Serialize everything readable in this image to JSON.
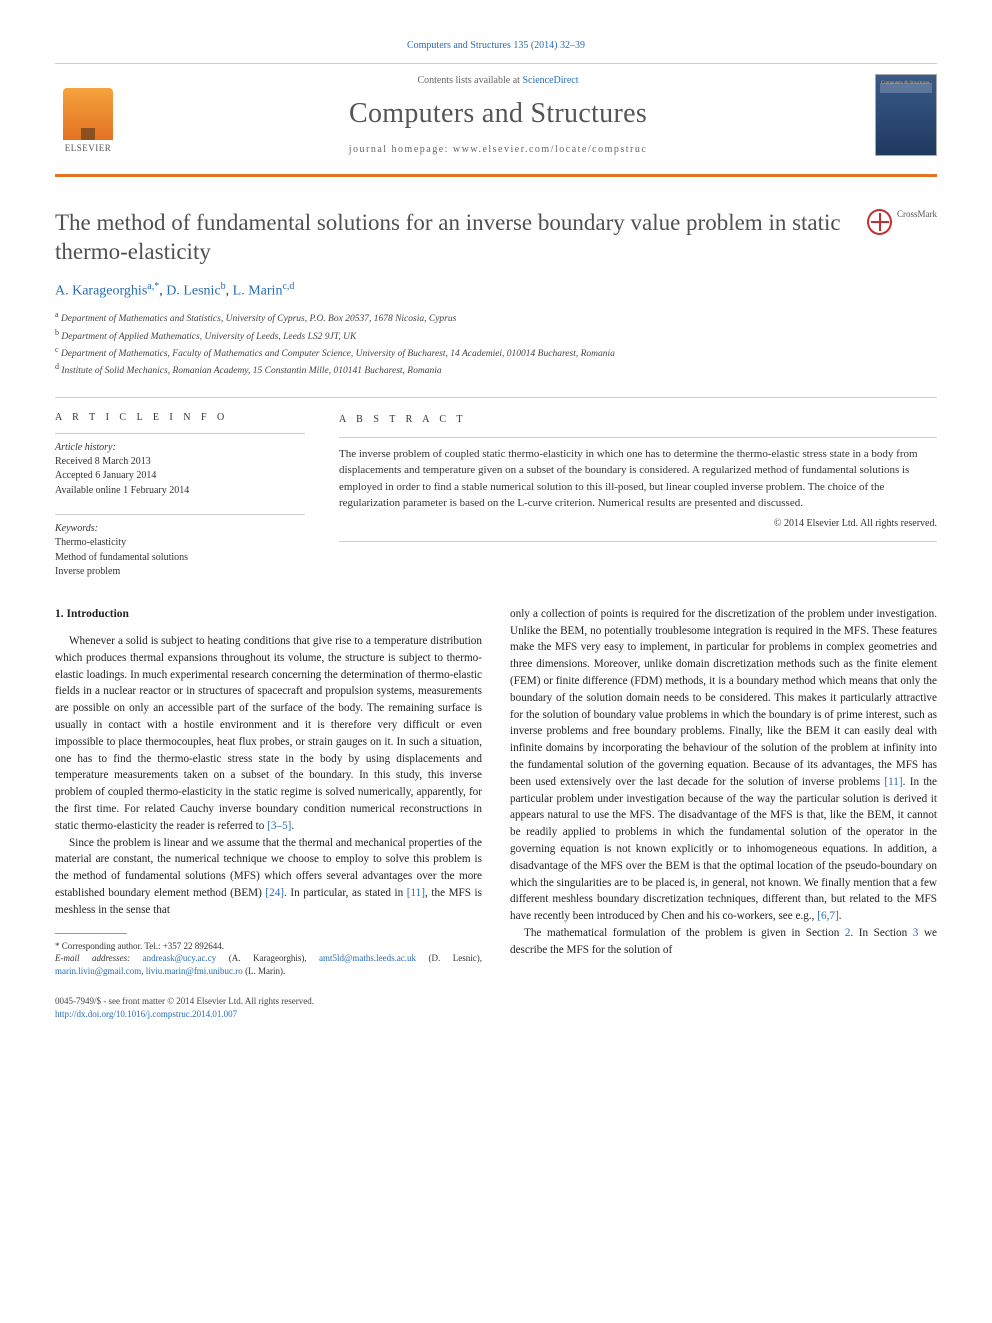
{
  "header": {
    "citation": "Computers and Structures 135 (2014) 32–39",
    "contents_prefix": "Contents lists available at ",
    "contents_link": "ScienceDirect",
    "journal_name": "Computers and Structures",
    "homepage_label": "journal homepage: ",
    "homepage_url": "www.elsevier.com/locate/compstruc",
    "publisher_logo_text": "ELSEVIER",
    "cover_label": "Computers & Structures"
  },
  "crossmark": {
    "label": "CrossMark"
  },
  "article": {
    "title": "The method of fundamental solutions for an inverse boundary value problem in static thermo-elasticity",
    "authors_html": {
      "a1": "A. Karageorghis",
      "a1_sup": "a,*",
      "a2": "D. Lesnic",
      "a2_sup": "b",
      "a3": "L. Marin",
      "a3_sup": "c,d"
    },
    "affiliations": [
      {
        "sup": "a",
        "text": "Department of Mathematics and Statistics, University of Cyprus, P.O. Box 20537, 1678 Nicosia, Cyprus"
      },
      {
        "sup": "b",
        "text": "Department of Applied Mathematics, University of Leeds, Leeds LS2 9JT, UK"
      },
      {
        "sup": "c",
        "text": "Department of Mathematics, Faculty of Mathematics and Computer Science, University of Bucharest, 14 Academiei, 010014 Bucharest, Romania"
      },
      {
        "sup": "d",
        "text": "Institute of Solid Mechanics, Romanian Academy, 15 Constantin Mille, 010141 Bucharest, Romania"
      }
    ]
  },
  "article_info": {
    "heading": "A R T I C L E   I N F O",
    "history_label": "Article history:",
    "received": "Received 8 March 2013",
    "accepted": "Accepted 6 January 2014",
    "online": "Available online 1 February 2014",
    "keywords_label": "Keywords:",
    "keywords": [
      "Thermo-elasticity",
      "Method of fundamental solutions",
      "Inverse problem"
    ]
  },
  "abstract": {
    "heading": "A B S T R A C T",
    "text": "The inverse problem of coupled static thermo-elasticity in which one has to determine the thermo-elastic stress state in a body from displacements and temperature given on a subset of the boundary is considered. A regularized method of fundamental solutions is employed in order to find a stable numerical solution to this ill-posed, but linear coupled inverse problem. The choice of the regularization parameter is based on the L-curve criterion. Numerical results are presented and discussed.",
    "copyright": "© 2014 Elsevier Ltd. All rights reserved."
  },
  "body": {
    "section_heading": "1. Introduction",
    "col1_p1": "Whenever a solid is subject to heating conditions that give rise to a temperature distribution which produces thermal expansions throughout its volume, the structure is subject to thermo-elastic loadings. In much experimental research concerning the determination of thermo-elastic fields in a nuclear reactor or in structures of spacecraft and propulsion systems, measurements are possible on only an accessible part of the surface of the body. The remaining surface is usually in contact with a hostile environment and it is therefore very difficult or even impossible to place thermocouples, heat flux probes, or strain gauges on it. In such a situation, one has to find the thermo-elastic stress state in the body by using displacements and temperature measurements taken on a subset of the boundary. In this study, this inverse problem of coupled thermo-elasticity in the static regime is solved numerically, apparently, for the first time. For related Cauchy inverse boundary condition numerical reconstructions in static thermo-elasticity the reader is referred to ",
    "col1_p1_ref": "[3–5]",
    "col1_p1_tail": ".",
    "col1_p2a": "Since the problem is linear and we assume that the thermal and mechanical properties of the material are constant, the numerical technique we choose to employ to solve this problem is the method of fundamental solutions (MFS) which offers several advantages over the more established boundary element method (BEM) ",
    "col1_p2_ref1": "[24]",
    "col1_p2b": ". In particular, as stated in ",
    "col1_p2_ref2": "[11]",
    "col1_p2c": ", the MFS is meshless in the sense that",
    "col2_p1a": "only a collection of points is required for the discretization of the problem under investigation. Unlike the BEM, no potentially troublesome integration is required in the MFS. These features make the MFS very easy to implement, in particular for problems in complex geometries and three dimensions. Moreover, unlike domain discretization methods such as the finite element (FEM) or finite difference (FDM) methods, it is a boundary method which means that only the boundary of the solution domain needs to be considered. This makes it particularly attractive for the solution of boundary value problems in which the boundary is of prime interest, such as inverse problems and free boundary problems. Finally, like the BEM it can easily deal with infinite domains by incorporating the behaviour of the solution of the problem at infinity into the fundamental solution of the governing equation. Because of its advantages, the MFS has been used extensively over the last decade for the solution of inverse problems ",
    "col2_p1_ref1": "[11]",
    "col2_p1b": ". In the particular problem under investigation because of the way the particular solution is derived it appears natural to use the MFS. The disadvantage of the MFS is that, like the BEM, it cannot be readily applied to problems in which the fundamental solution of the operator in the governing equation is not known explicitly or to inhomogeneous equations. In addition, a disadvantage of the MFS over the BEM is that the optimal location of the pseudo-boundary on which the singularities are to be placed is, in general, not known. We finally mention that a few different meshless boundary discretization techniques, different than, but related to the MFS have recently been introduced by Chen and his co-workers, see e.g., ",
    "col2_p1_ref2": "[6,7]",
    "col2_p1c": ".",
    "col2_p2a": "The mathematical formulation of the problem is given in Section ",
    "col2_p2_ref1": "2",
    "col2_p2b": ". In Section ",
    "col2_p2_ref2": "3",
    "col2_p2c": " we describe the MFS for the solution of"
  },
  "footnotes": {
    "corr_label": "* Corresponding author. Tel.: +357 22 892644.",
    "email_label": "E-mail addresses: ",
    "e1": "andreask@ucy.ac.cy",
    "e1_who": " (A. Karageorghis), ",
    "e2": "amt5ld@maths.leeds.ac.uk",
    "e2_who": " (D. Lesnic), ",
    "e3": "marin.liviu@gmail.com",
    "e3_sep": ", ",
    "e4": "liviu.marin@fmi.unibuc.ro",
    "e4_who": " (L. Marin)."
  },
  "footer": {
    "issn": "0045-7949/$ - see front matter © 2014 Elsevier Ltd. All rights reserved.",
    "doi_url": "http://dx.doi.org/10.1016/j.compstruc.2014.01.007"
  },
  "colors": {
    "link": "#2a6cb3",
    "accent": "#e37222",
    "text": "#333333"
  }
}
